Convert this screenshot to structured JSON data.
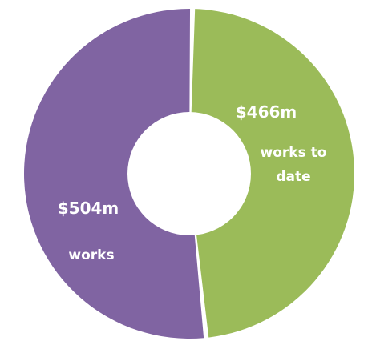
{
  "chart_data": {
    "type": "pie",
    "variant": "donut",
    "slices": [
      {
        "value_label": "$466m",
        "description_lines": [
          "works to",
          "date"
        ],
        "value": 466,
        "color": "#9bbb59"
      },
      {
        "value_label": "$504m",
        "description_lines": [
          "works"
        ],
        "value": 504,
        "color": "#8064a2"
      }
    ],
    "total": 970,
    "legend": "none",
    "start": "top",
    "direction": "clockwise"
  }
}
